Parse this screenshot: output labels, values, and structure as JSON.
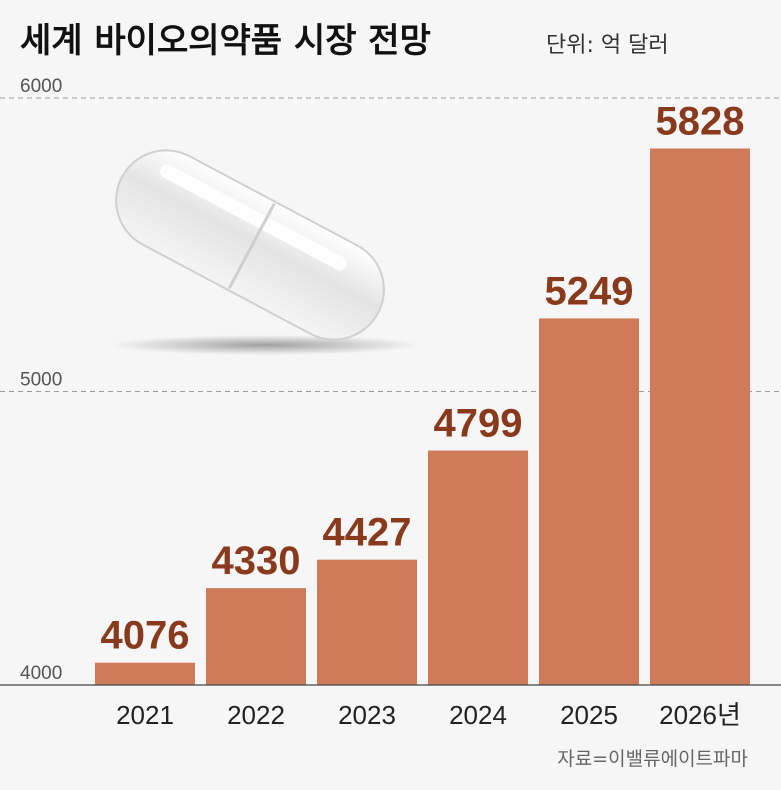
{
  "chart_data": {
    "type": "bar",
    "title": "세계 바이오의약품 시장 전망",
    "unit": "단위: 억 달러",
    "categories": [
      "2021",
      "2022",
      "2023",
      "2024",
      "2025",
      "2026년"
    ],
    "values": [
      4076,
      4330,
      4427,
      4799,
      5249,
      5828
    ],
    "value_labels": [
      "4076",
      "4330",
      "4427",
      "4799",
      "5249",
      "5828"
    ],
    "y_ticks": [
      "4000",
      "5000",
      "6000"
    ],
    "ylim": [
      4000,
      6000
    ],
    "grid": "dashed",
    "source": "자료=이밸류에이트파마",
    "bar_color": "#cf7a58",
    "label_color": "#8a3a1c"
  }
}
